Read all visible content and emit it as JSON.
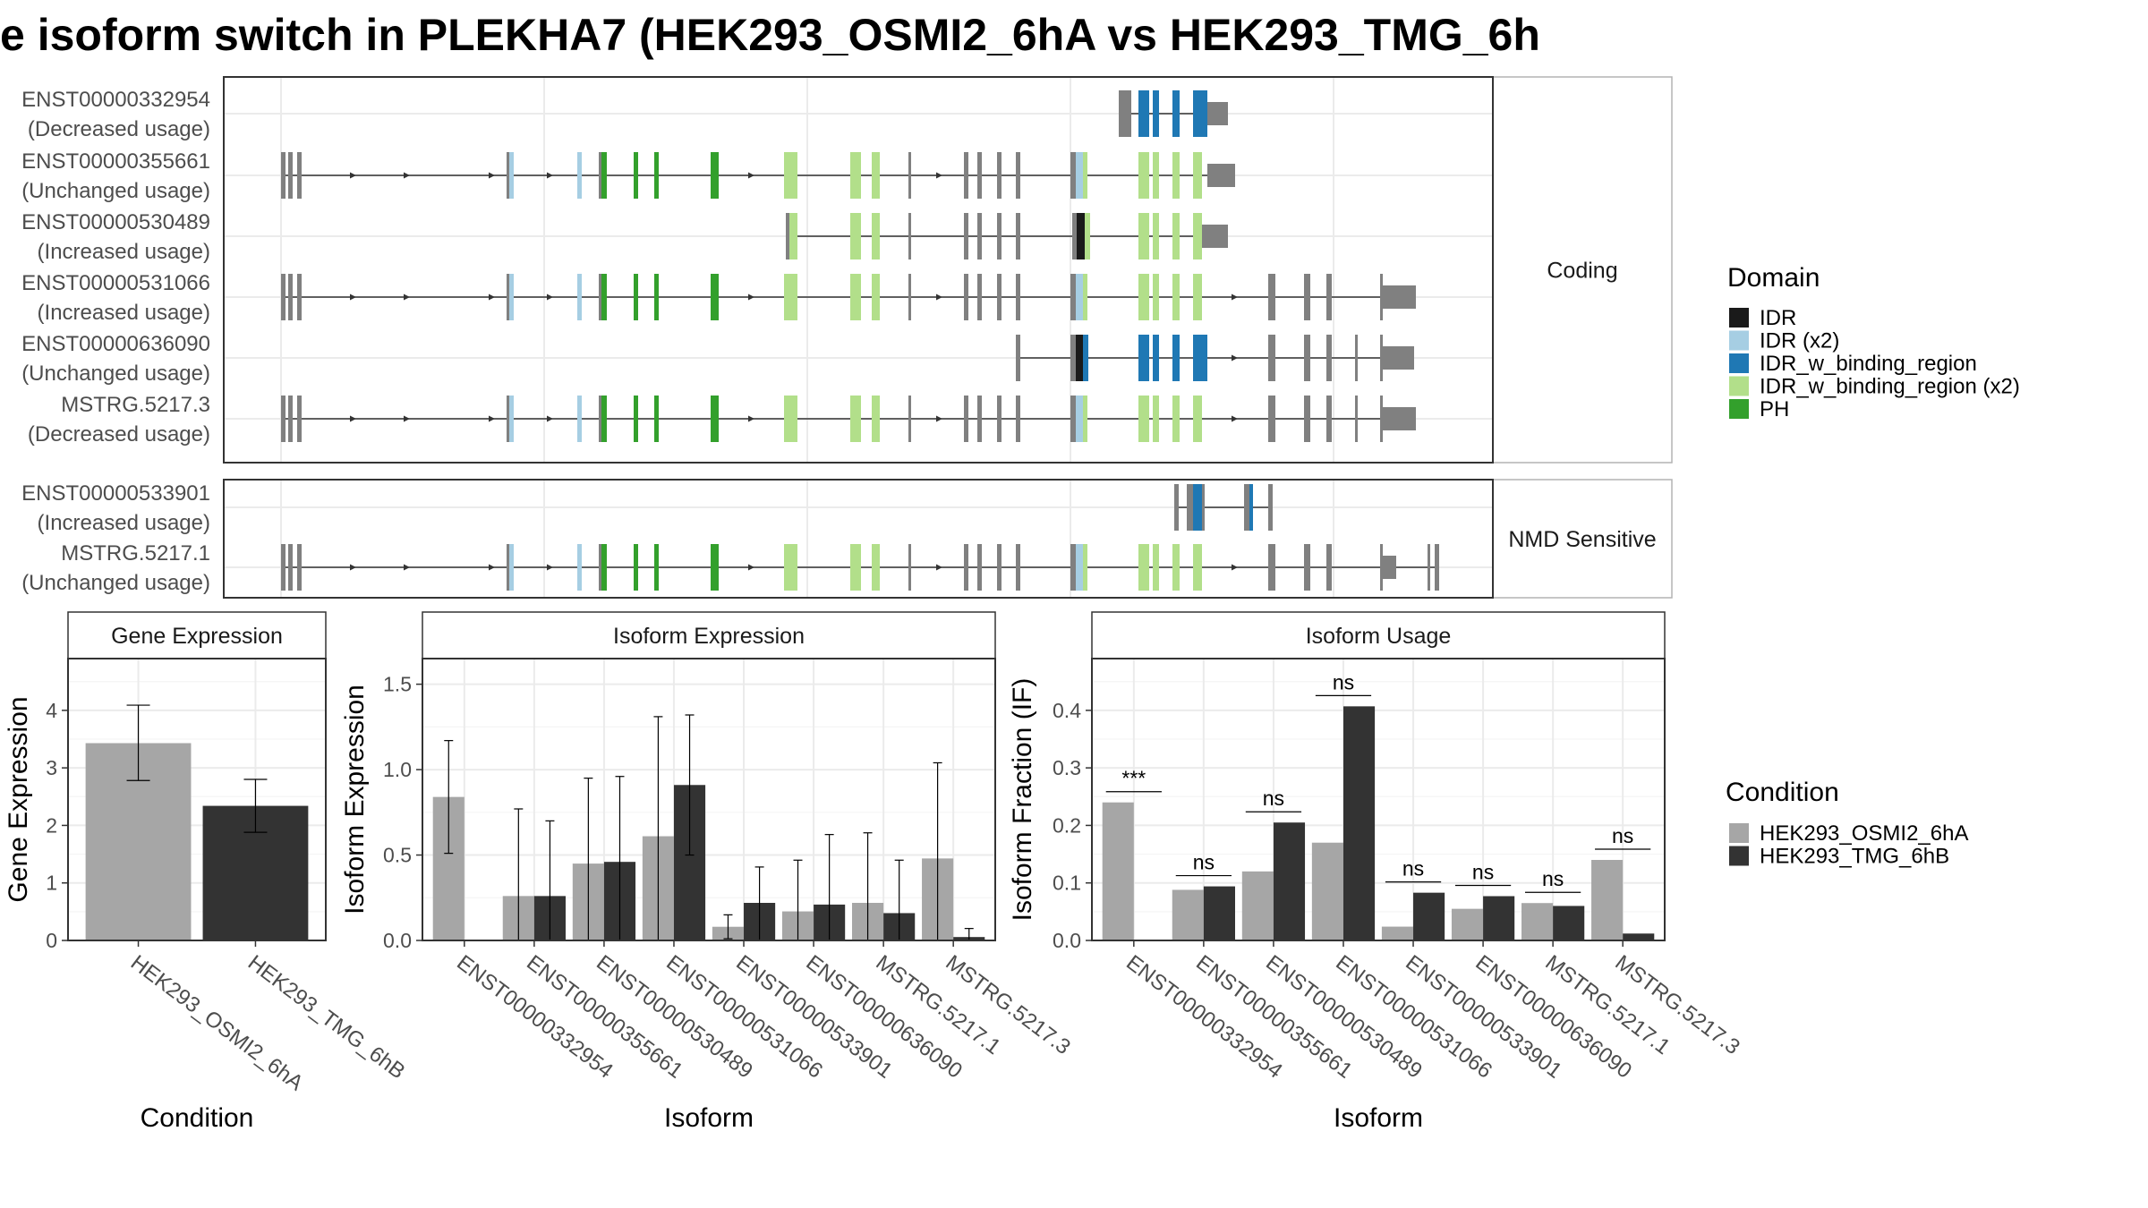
{
  "title": "e isoform switch in PLEKHA7 (HEK293_OSMI2_6hA vs HEK293_TMG_6h",
  "colors": {
    "IDR": "#1a1a1a",
    "IDR (x2)": "#a6cee3",
    "IDR_w_binding_region": "#1f78b4",
    "IDR_w_binding_region (x2)": "#b2df8a",
    "PH": "#33a02c",
    "exon": "#808080",
    "cond_a": "#a6a6a6",
    "cond_b": "#333333"
  },
  "structure": {
    "panels": [
      {
        "label": "Coding",
        "transcripts": [
          {
            "id": "ENST00000332954",
            "usage": "(Decreased usage)"
          },
          {
            "id": "ENST00000355661",
            "usage": "(Unchanged usage)"
          },
          {
            "id": "ENST00000530489",
            "usage": "(Increased usage)"
          },
          {
            "id": "ENST00000531066",
            "usage": "(Increased usage)"
          },
          {
            "id": "ENST00000636090",
            "usage": "(Unchanged usage)"
          },
          {
            "id": "MSTRG.5217.3",
            "usage": "(Decreased usage)"
          }
        ]
      },
      {
        "label": "NMD Sensitive",
        "transcripts": [
          {
            "id": "ENST00000533901",
            "usage": "(Increased usage)"
          },
          {
            "id": "MSTRG.5217.1",
            "usage": "(Unchanged usage)"
          }
        ]
      }
    ]
  },
  "legends": {
    "domain": {
      "title": "Domain",
      "items": [
        "IDR",
        "IDR (x2)",
        "IDR_w_binding_region",
        "IDR_w_binding_region (x2)",
        "PH"
      ]
    },
    "condition": {
      "title": "Condition",
      "items": [
        "HEK293_OSMI2_6hA",
        "HEK293_TMG_6hB"
      ]
    }
  },
  "chart_data": [
    {
      "type": "bar",
      "title": "Gene Expression",
      "xlabel": "Condition",
      "ylabel": "Gene Expression",
      "categories": [
        "HEK293_OSMI2_6hA",
        "HEK293_TMG_6hB"
      ],
      "values": [
        3.43,
        2.34
      ],
      "error_low": [
        2.78,
        1.88
      ],
      "error_high": [
        4.09,
        2.8
      ],
      "ylim": [
        0,
        4.9
      ],
      "yticks": [
        0,
        1,
        2,
        3,
        4
      ]
    },
    {
      "type": "bar",
      "title": "Isoform Expression",
      "xlabel": "Isoform",
      "ylabel": "Isoform Expression",
      "categories": [
        "ENST00000332954",
        "ENST00000355661",
        "ENST00000530489",
        "ENST00000531066",
        "ENST00000533901",
        "ENST00000636090",
        "MSTRG.5217.1",
        "MSTRG.5217.3"
      ],
      "series": [
        {
          "name": "HEK293_OSMI2_6hA",
          "values": [
            0.84,
            0.26,
            0.45,
            0.61,
            0.08,
            0.17,
            0.22,
            0.48
          ],
          "error_low": [
            0.51,
            0.0,
            0.0,
            0.0,
            0.01,
            0.0,
            0.0,
            0.0
          ],
          "error_high": [
            1.17,
            0.77,
            0.95,
            1.31,
            0.15,
            0.47,
            0.63,
            1.04
          ]
        },
        {
          "name": "HEK293_TMG_6hB",
          "values": [
            0.0,
            0.26,
            0.46,
            0.91,
            0.22,
            0.21,
            0.16,
            0.02
          ],
          "error_low": [
            0.0,
            0.0,
            0.0,
            0.5,
            0.0,
            0.0,
            0.0,
            0.0
          ],
          "error_high": [
            0.0,
            0.7,
            0.96,
            1.32,
            0.43,
            0.62,
            0.47,
            0.07
          ]
        }
      ],
      "ylim": [
        0,
        1.65
      ],
      "yticks": [
        0.0,
        0.5,
        1.0,
        1.5
      ]
    },
    {
      "type": "bar",
      "title": "Isoform Usage",
      "xlabel": "Isoform",
      "ylabel": "Isoform Fraction (IF)",
      "categories": [
        "ENST00000332954",
        "ENST00000355661",
        "ENST00000530489",
        "ENST00000531066",
        "ENST00000533901",
        "ENST00000636090",
        "MSTRG.5217.1",
        "MSTRG.5217.3"
      ],
      "series": [
        {
          "name": "HEK293_OSMI2_6hA",
          "values": [
            0.24,
            0.088,
            0.12,
            0.17,
            0.024,
            0.055,
            0.065,
            0.14
          ]
        },
        {
          "name": "HEK293_TMG_6hB",
          "values": [
            0.0,
            0.094,
            0.205,
            0.407,
            0.083,
            0.077,
            0.06,
            0.012
          ]
        }
      ],
      "significance": [
        "***",
        "ns",
        "ns",
        "ns",
        "ns",
        "ns",
        "ns",
        "ns"
      ],
      "ylim": [
        0,
        0.49
      ],
      "yticks": [
        0.0,
        0.1,
        0.2,
        0.3,
        0.4
      ]
    }
  ]
}
